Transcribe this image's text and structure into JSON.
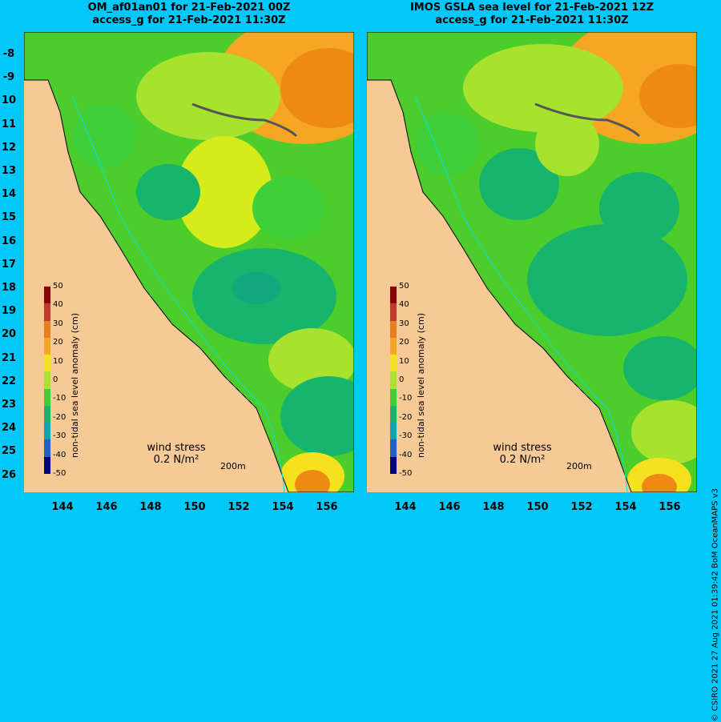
{
  "panels": [
    {
      "title_line1": "OM_af01an01 for 21-Feb-2021 00Z",
      "title_line2": "access_g for 21-Feb-2021 11:30Z"
    },
    {
      "title_line1": "IMOS GSLA sea level  for 21-Feb-2021 12Z",
      "title_line2": "access_g for 21-Feb-2021 11:30Z"
    }
  ],
  "y_labels": [
    "-8",
    "-9",
    "10",
    "11",
    "12",
    "13",
    "14",
    "15",
    "16",
    "17",
    "18",
    "19",
    "20",
    "21",
    "22",
    "23",
    "24",
    "25",
    "26"
  ],
  "x_labels": [
    "144",
    "146",
    "148",
    "150",
    "152",
    "154",
    "156"
  ],
  "colorbar": {
    "title": "non-tidal sea level anomaly (cm)",
    "ticks": [
      "50",
      "40",
      "30",
      "20",
      "10",
      "0",
      "-10",
      "-20",
      "-30",
      "-40",
      "-50"
    ],
    "colors": [
      "#8b0000",
      "#c0392b",
      "#e67e22",
      "#f5a623",
      "#f7e01e",
      "#a6e22e",
      "#3ecf3a",
      "#16b56b",
      "#0aa5b0",
      "#1f5fcf",
      "#000080"
    ]
  },
  "wind": {
    "label": "wind stress",
    "value": "0.2 N/m²"
  },
  "scale_label": "200m",
  "credit": "© CSIRO 2021   27 Aug 2021 01:39:42 BoM OceanMAPS v3"
}
